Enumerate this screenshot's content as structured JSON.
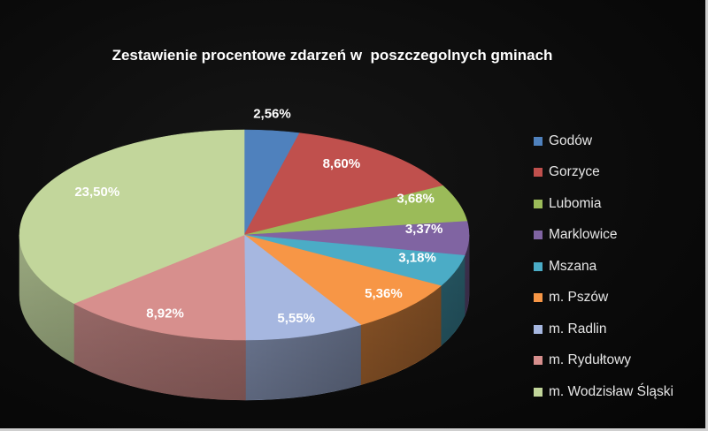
{
  "chart_data": {
    "type": "pie",
    "three_d": true,
    "title": "Zestawienie procentowe zdarzeń w  poszczegolnych gminach",
    "categories": [
      "Godów",
      "Gorzyce",
      "Lubomia",
      "Marklowice",
      "Mszana",
      "m. Pszów",
      "m. Radlin",
      "m. Rydułtowy",
      "m. Wodzisław Śląski"
    ],
    "values": [
      2.56,
      8.6,
      3.68,
      3.37,
      3.18,
      5.36,
      5.55,
      8.92,
      23.5
    ],
    "data_labels": [
      "2,56%",
      "8,60%",
      "3,68%",
      "3,37%",
      "3,18%",
      "5,36%",
      "5,55%",
      "8,92%",
      "23,50%"
    ],
    "colors": [
      "#4F81BD",
      "#C0504D",
      "#9BBB59",
      "#8064A2",
      "#4BACC6",
      "#F79646",
      "#A6B7E0",
      "#D78F8D",
      "#C2D69B"
    ],
    "legend_position": "right",
    "background_color": "#0B0B0B"
  }
}
